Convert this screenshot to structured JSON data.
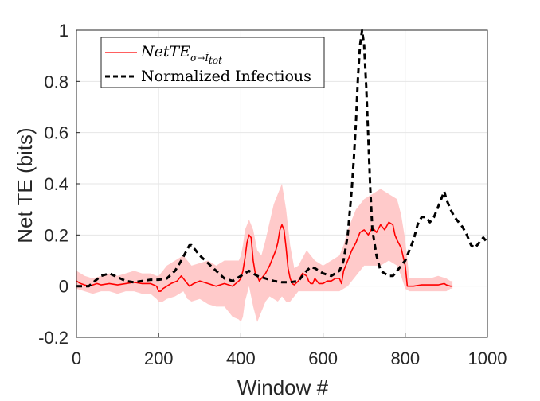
{
  "chart_data": {
    "type": "line",
    "xlabel": "Window #",
    "ylabel": "Net TE (bits)",
    "xlim": [
      0,
      1000
    ],
    "ylim": [
      -0.2,
      1
    ],
    "xticks": [
      "0",
      "200",
      "400",
      "600",
      "800",
      "1000"
    ],
    "yticks": [
      "-0.2",
      "0",
      "0.2",
      "0.4",
      "0.6",
      "0.8",
      "1"
    ],
    "grid": true,
    "legend_position": "top-left",
    "legend": {
      "nette": {
        "main": "NetTE",
        "sub": "σ→İ",
        "subsub": "tot"
      },
      "infectious": "Normalized Infectious"
    },
    "colors": {
      "nette": "#ff0000",
      "band": "#ffc4c4",
      "infectious": "#000000",
      "grid": "#e6e6e6"
    },
    "series": [
      {
        "style": "solid-red",
        "x": [
          0,
          10,
          20,
          30,
          40,
          50,
          60,
          80,
          100,
          120,
          140,
          160,
          180,
          195,
          200,
          205,
          210,
          220,
          230,
          245,
          255,
          265,
          275,
          285,
          300,
          320,
          340,
          360,
          380,
          395,
          400,
          405,
          410,
          415,
          420,
          425,
          430,
          435,
          440,
          445,
          450,
          460,
          470,
          480,
          485,
          490,
          495,
          500,
          505,
          510,
          515,
          520,
          525,
          530,
          540,
          550,
          560,
          565,
          570,
          575,
          580,
          590,
          600,
          610,
          620,
          630,
          640,
          645,
          650,
          660,
          670,
          680,
          690,
          700,
          710,
          720,
          730,
          740,
          750,
          760,
          770,
          775,
          780,
          790,
          800,
          805,
          810,
          820,
          840,
          860,
          880,
          895,
          900,
          910,
          915
        ],
        "y": [
          0.02,
          0.01,
          0.005,
          0.0,
          0.005,
          0.01,
          0.005,
          0.01,
          0.005,
          0.01,
          0.015,
          0.01,
          0.01,
          0.0,
          -0.02,
          -0.02,
          -0.01,
          0.0,
          0.01,
          0.02,
          0.04,
          0.02,
          0.0,
          0.01,
          0.02,
          0.01,
          0.0,
          0.01,
          0.0,
          0.02,
          0.03,
          0.06,
          0.11,
          0.17,
          0.2,
          0.19,
          0.1,
          0.05,
          0.04,
          0.02,
          0.03,
          0.05,
          0.08,
          0.12,
          0.14,
          0.17,
          0.22,
          0.24,
          0.22,
          0.15,
          0.07,
          0.03,
          0.01,
          0.005,
          0.02,
          0.05,
          0.04,
          0.02,
          0.01,
          0.01,
          0.03,
          0.01,
          0.01,
          0.02,
          0.02,
          0.03,
          0.03,
          0.01,
          0.06,
          0.1,
          0.14,
          0.17,
          0.21,
          0.22,
          0.2,
          0.23,
          0.21,
          0.24,
          0.22,
          0.25,
          0.24,
          0.2,
          0.18,
          0.15,
          0.08,
          0.0,
          0.0,
          0.0,
          0.005,
          0.005,
          0.005,
          0.01,
          0.005,
          0.0,
          0.0
        ]
      },
      {
        "style": "dashed-black",
        "x": [
          0,
          20,
          30,
          45,
          60,
          80,
          100,
          120,
          140,
          160,
          180,
          200,
          220,
          240,
          255,
          265,
          275,
          280,
          290,
          300,
          320,
          340,
          360,
          380,
          400,
          420,
          440,
          460,
          480,
          500,
          520,
          540,
          560,
          570,
          580,
          600,
          620,
          640,
          650,
          660,
          670,
          675,
          680,
          685,
          690,
          695,
          700,
          705,
          710,
          715,
          720,
          730,
          740,
          750,
          760,
          770,
          780,
          790,
          800,
          810,
          820,
          830,
          840,
          850,
          860,
          870,
          880,
          890,
          895,
          900,
          910,
          920,
          930,
          940,
          950,
          960,
          970,
          980,
          990,
          1000
        ],
        "y": [
          0.0,
          0.0,
          0.0,
          0.02,
          0.04,
          0.05,
          0.035,
          0.02,
          0.015,
          0.02,
          0.025,
          0.025,
          0.03,
          0.06,
          0.1,
          0.13,
          0.16,
          0.16,
          0.14,
          0.12,
          0.09,
          0.06,
          0.03,
          0.02,
          0.04,
          0.06,
          0.04,
          0.03,
          0.02,
          0.015,
          0.015,
          0.02,
          0.06,
          0.075,
          0.07,
          0.05,
          0.04,
          0.06,
          0.1,
          0.2,
          0.38,
          0.5,
          0.64,
          0.82,
          0.94,
          1.0,
          0.94,
          0.78,
          0.58,
          0.38,
          0.22,
          0.12,
          0.06,
          0.05,
          0.04,
          0.04,
          0.06,
          0.08,
          0.1,
          0.14,
          0.18,
          0.24,
          0.27,
          0.27,
          0.25,
          0.27,
          0.31,
          0.35,
          0.37,
          0.34,
          0.3,
          0.27,
          0.25,
          0.23,
          0.2,
          0.16,
          0.15,
          0.17,
          0.19,
          0.17
        ]
      }
    ],
    "band": {
      "x": [
        0,
        20,
        40,
        60,
        80,
        100,
        120,
        140,
        160,
        180,
        195,
        200,
        210,
        220,
        240,
        260,
        270,
        280,
        300,
        320,
        340,
        360,
        380,
        395,
        400,
        405,
        410,
        420,
        430,
        440,
        450,
        460,
        470,
        480,
        490,
        500,
        510,
        520,
        530,
        540,
        560,
        580,
        600,
        620,
        640,
        650,
        660,
        680,
        700,
        720,
        740,
        760,
        780,
        790,
        800,
        810,
        840,
        860,
        880,
        900,
        910,
        915
      ],
      "upper": [
        0.06,
        0.04,
        0.03,
        0.04,
        0.05,
        0.04,
        0.05,
        0.06,
        0.05,
        0.05,
        0.04,
        0.04,
        0.06,
        0.08,
        0.1,
        0.12,
        0.1,
        0.08,
        0.09,
        0.1,
        0.08,
        0.1,
        0.1,
        0.1,
        0.12,
        0.16,
        0.22,
        0.26,
        0.22,
        0.14,
        0.12,
        0.18,
        0.25,
        0.32,
        0.36,
        0.4,
        0.3,
        0.16,
        0.07,
        0.08,
        0.14,
        0.1,
        0.08,
        0.1,
        0.12,
        0.16,
        0.22,
        0.3,
        0.34,
        0.36,
        0.38,
        0.36,
        0.34,
        0.28,
        0.18,
        0.03,
        0.03,
        0.03,
        0.04,
        0.03,
        0.02,
        0.02
      ],
      "lower": [
        -0.01,
        -0.02,
        -0.03,
        -0.02,
        -0.02,
        -0.03,
        -0.02,
        -0.02,
        -0.03,
        -0.03,
        -0.05,
        -0.06,
        -0.06,
        -0.05,
        -0.04,
        -0.02,
        -0.05,
        -0.06,
        -0.05,
        -0.07,
        -0.08,
        -0.08,
        -0.12,
        -0.13,
        -0.14,
        -0.12,
        -0.06,
        0.0,
        -0.08,
        -0.14,
        -0.1,
        -0.06,
        -0.04,
        -0.05,
        -0.06,
        -0.04,
        -0.06,
        -0.06,
        -0.04,
        -0.02,
        -0.02,
        -0.02,
        -0.02,
        -0.02,
        -0.02,
        -0.01,
        0.0,
        0.04,
        0.08,
        0.08,
        0.08,
        0.1,
        0.08,
        0.04,
        -0.01,
        -0.02,
        -0.02,
        -0.02,
        -0.02,
        -0.02,
        -0.01,
        -0.01
      ]
    }
  }
}
